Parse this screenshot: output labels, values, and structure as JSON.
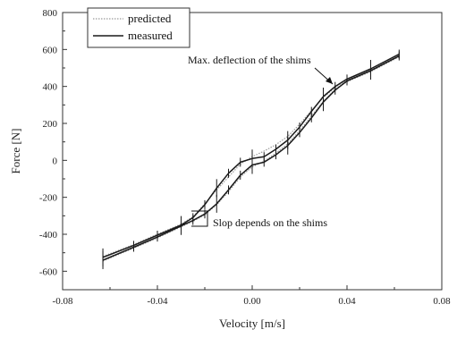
{
  "chart_data": {
    "type": "line",
    "title": "",
    "xlabel": "Velocity [m/s]",
    "ylabel": "Force [N]",
    "xlim": [
      -0.08,
      0.08
    ],
    "ylim": [
      -700,
      800
    ],
    "xticks": [
      -0.08,
      -0.04,
      0.0,
      0.04,
      0.08
    ],
    "xtick_labels": [
      "-0.08",
      "-0.04",
      "0.00",
      "0.04",
      "0.08"
    ],
    "yticks": [
      -600,
      -400,
      -200,
      0,
      200,
      400,
      600,
      800
    ],
    "ytick_labels": [
      "-600",
      "-400",
      "-200",
      "0",
      "200",
      "400",
      "600",
      "800"
    ],
    "grid": false,
    "legend": {
      "placement": "top-left",
      "entries": [
        "predicted",
        "measured"
      ]
    },
    "series": [
      {
        "name": "predicted",
        "style": "dotted",
        "color": "#9a9a9a",
        "upper": {
          "x": [
            -0.063,
            -0.05,
            -0.04,
            -0.03,
            -0.025,
            -0.02,
            -0.015,
            -0.01,
            -0.005,
            0.0,
            0.005,
            0.01,
            0.015,
            0.02,
            0.025,
            0.03,
            0.035,
            0.04,
            0.05,
            0.062
          ],
          "y": [
            -520,
            -455,
            -400,
            -345,
            -305,
            -235,
            -160,
            -90,
            -20,
            20,
            50,
            85,
            130,
            195,
            270,
            340,
            395,
            435,
            490,
            570
          ]
        },
        "lower": {
          "x": [
            -0.063,
            -0.05,
            -0.04,
            -0.03,
            -0.025,
            -0.02,
            -0.015,
            -0.01,
            -0.005,
            0.0,
            0.005,
            0.01,
            0.015,
            0.02,
            0.025,
            0.03,
            0.035,
            0.04,
            0.05,
            0.062
          ],
          "y": [
            -545,
            -475,
            -420,
            -360,
            -330,
            -295,
            -240,
            -170,
            -90,
            -35,
            -5,
            40,
            90,
            160,
            240,
            320,
            385,
            425,
            480,
            560
          ]
        }
      },
      {
        "name": "measured",
        "style": "solid",
        "color": "#1a1a1a",
        "upper": {
          "x": [
            -0.063,
            -0.05,
            -0.04,
            -0.03,
            -0.025,
            -0.02,
            -0.015,
            -0.01,
            -0.005,
            0.0,
            0.005,
            0.01,
            0.015,
            0.02,
            0.025,
            0.03,
            0.035,
            0.04,
            0.05,
            0.062
          ],
          "y": [
            -525,
            -460,
            -405,
            -350,
            -310,
            -240,
            -150,
            -70,
            -10,
            10,
            20,
            60,
            110,
            180,
            265,
            345,
            400,
            440,
            495,
            575
          ]
        },
        "lower": {
          "x": [
            -0.063,
            -0.05,
            -0.04,
            -0.03,
            -0.025,
            -0.02,
            -0.015,
            -0.01,
            -0.005,
            0.0,
            0.005,
            0.01,
            0.015,
            0.02,
            0.025,
            0.03,
            0.035,
            0.04,
            0.05,
            0.062
          ],
          "y": [
            -540,
            -470,
            -415,
            -355,
            -325,
            -290,
            -235,
            -160,
            -80,
            -25,
            -10,
            30,
            80,
            150,
            230,
            315,
            380,
            430,
            485,
            565
          ]
        }
      }
    ],
    "annotations": [
      {
        "text": "Max. deflection of the shims",
        "x": 0.034,
        "y": 400
      },
      {
        "text": "Slop depends on the shims",
        "x": -0.025,
        "y": -340
      }
    ]
  }
}
